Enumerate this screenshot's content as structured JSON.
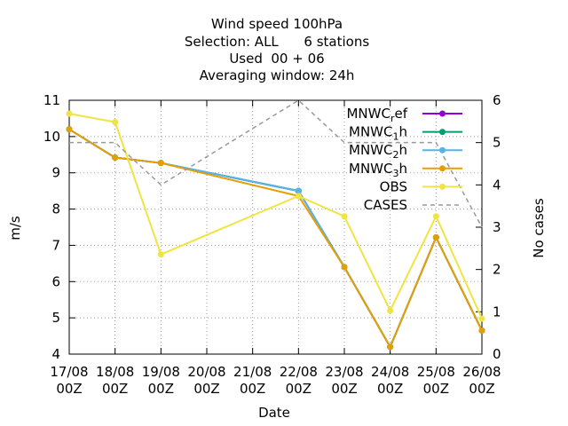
{
  "chart_data": {
    "type": "line",
    "title_lines": [
      "Wind speed 100hPa",
      "Selection: ALL      6 stations",
      "Used  00 + 06",
      "Averaging window: 24h"
    ],
    "xlabel": "Date",
    "ylabel": "m/s",
    "y2label": "No cases",
    "x": [
      "17/08 00Z",
      "18/08 00Z",
      "19/08 00Z",
      "20/08 00Z",
      "21/08 00Z",
      "22/08 00Z",
      "23/08 00Z",
      "24/08 00Z",
      "25/08 00Z",
      "26/08 00Z"
    ],
    "ylim": [
      4,
      11
    ],
    "y2lim": [
      0,
      6
    ],
    "yticks": [
      4,
      5,
      6,
      7,
      8,
      9,
      10,
      11
    ],
    "y2ticks": [
      0,
      1,
      2,
      3,
      4,
      5,
      6
    ],
    "grid": true,
    "legend_position": "top-right",
    "series": [
      {
        "name": "MNWC_ref",
        "legend": {
          "base": "MNWC",
          "sub": "r",
          "rest": "ef"
        },
        "color": "#9400d3",
        "axis": "y1",
        "style": "solid",
        "marker": "circle",
        "values": [
          10.2,
          9.42,
          9.27,
          null,
          null,
          8.5,
          6.4,
          4.2,
          7.22,
          4.65
        ]
      },
      {
        "name": "MNWC_1h",
        "legend": {
          "base": "MNWC",
          "sub": "1",
          "rest": "h"
        },
        "color": "#009e73",
        "axis": "y1",
        "style": "solid",
        "marker": "circle",
        "values": [
          10.2,
          9.42,
          9.27,
          null,
          null,
          8.5,
          6.4,
          4.2,
          7.22,
          4.65
        ]
      },
      {
        "name": "MNWC_2h",
        "legend": {
          "base": "MNWC",
          "sub": "2",
          "rest": "h"
        },
        "color": "#56b4e9",
        "axis": "y1",
        "style": "solid",
        "marker": "circle",
        "values": [
          10.2,
          9.42,
          9.27,
          null,
          null,
          8.5,
          6.4,
          4.2,
          7.22,
          4.65
        ]
      },
      {
        "name": "MNWC_3h",
        "legend": {
          "base": "MNWC",
          "sub": "3",
          "rest": "h"
        },
        "color": "#e69f00",
        "axis": "y1",
        "style": "solid",
        "marker": "circle",
        "values": [
          10.2,
          9.42,
          9.27,
          null,
          null,
          8.36,
          6.4,
          4.2,
          7.22,
          4.65
        ]
      },
      {
        "name": "OBS",
        "legend": {
          "base": "OBS",
          "sub": "",
          "rest": ""
        },
        "color": "#f0e442",
        "axis": "y1",
        "style": "solid",
        "marker": "circle",
        "values": [
          10.63,
          10.4,
          6.75,
          null,
          null,
          8.36,
          7.8,
          5.2,
          7.8,
          4.98
        ]
      },
      {
        "name": "CASES",
        "legend": {
          "base": "CASES",
          "sub": "",
          "rest": ""
        },
        "color": "#999999",
        "axis": "y2",
        "style": "dashed",
        "marker": "none",
        "values": [
          5,
          5,
          4,
          null,
          null,
          6,
          5,
          5,
          5,
          3
        ]
      }
    ]
  }
}
